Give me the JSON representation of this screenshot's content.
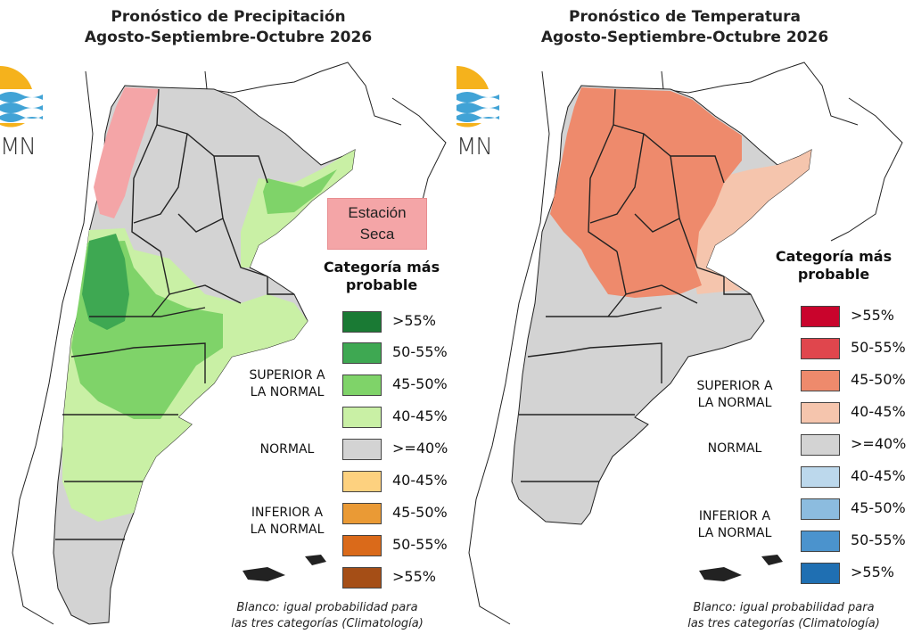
{
  "panels": [
    {
      "title_line1": "Pronóstico de Precipitación",
      "title_line2": "Agosto-Septiembre-Octubre 2026",
      "logo_text": "MN",
      "dry_season": {
        "line1": "Estación",
        "line2": "Seca",
        "color": "#f4a5a7"
      },
      "legend": {
        "title_line1": "Categoría más",
        "title_line2": "probable",
        "above_label_line1": "SUPERIOR A",
        "above_label_line2": "LA NORMAL",
        "normal_label": "NORMAL",
        "below_label_line1": "INFERIOR A",
        "below_label_line2": "LA NORMAL",
        "items": [
          {
            "label": ">55%",
            "color": "#1a7a34",
            "group": "above"
          },
          {
            "label": "50-55%",
            "color": "#3ea852",
            "group": "above"
          },
          {
            "label": "45-50%",
            "color": "#7fd369",
            "group": "above"
          },
          {
            "label": "40-45%",
            "color": "#c9f0a5",
            "group": "above"
          },
          {
            "label": ">=40%",
            "color": "#d3d3d3",
            "group": "normal"
          },
          {
            "label": "40-45%",
            "color": "#fdd17f",
            "group": "below"
          },
          {
            "label": "45-50%",
            "color": "#ea9a35",
            "group": "below"
          },
          {
            "label": "50-55%",
            "color": "#da6a1a",
            "group": "below"
          },
          {
            "label": ">55%",
            "color": "#a54e16",
            "group": "below"
          }
        ]
      },
      "note_line1": "Blanco: igual probabilidad para",
      "note_line2": "las tres categorías (Climatología)"
    },
    {
      "title_line1": "Pronóstico de Temperatura",
      "title_line2": "Agosto-Septiembre-Octubre 2026",
      "logo_text": "MN",
      "legend": {
        "title_line1": "Categoría más",
        "title_line2": "probable",
        "above_label_line1": "SUPERIOR A",
        "above_label_line2": "LA NORMAL",
        "normal_label": "NORMAL",
        "below_label_line1": "INFERIOR A",
        "below_label_line2": "LA NORMAL",
        "items": [
          {
            "label": ">55%",
            "color": "#c9042c",
            "group": "above"
          },
          {
            "label": "50-55%",
            "color": "#e0464d",
            "group": "above"
          },
          {
            "label": "45-50%",
            "color": "#ee8a6c",
            "group": "above"
          },
          {
            "label": "40-45%",
            "color": "#f5c5ad",
            "group": "above"
          },
          {
            "label": ">=40%",
            "color": "#d3d3d3",
            "group": "normal"
          },
          {
            "label": "40-45%",
            "color": "#bcd8ec",
            "group": "below"
          },
          {
            "label": "45-50%",
            "color": "#8cbcdf",
            "group": "below"
          },
          {
            "label": "50-55%",
            "color": "#4b93cd",
            "group": "below"
          },
          {
            "label": ">55%",
            "color": "#1f6fb2",
            "group": "below"
          }
        ]
      },
      "note_line1": "Blanco: igual probabilidad para",
      "note_line2": "las tres categorías (Climatología)"
    }
  ],
  "map_colors": {
    "normal": "#d3d3d3",
    "precip_dry": "#f4a5a7",
    "precip_40_45": "#c9f0a5",
    "precip_45_50": "#7fd369",
    "precip_50_55": "#3ea852",
    "temp_40_45": "#f5c5ad",
    "temp_45_50": "#ee8a6c",
    "border": "#222222",
    "logo_yellow": "#f5b21c",
    "logo_blue": "#41a3d6"
  }
}
